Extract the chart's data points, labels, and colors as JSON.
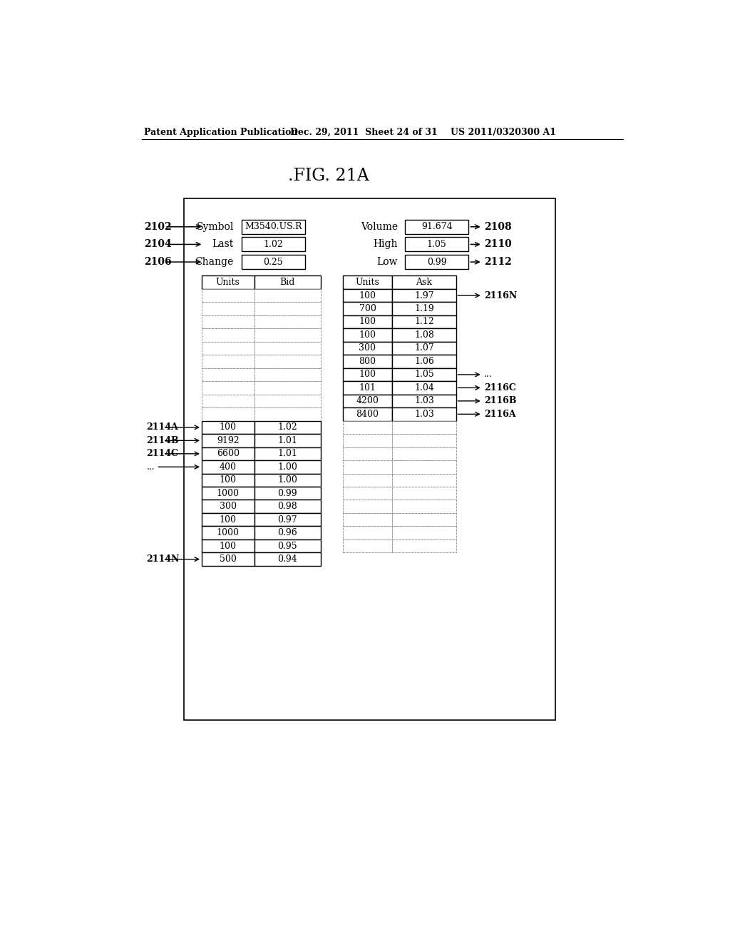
{
  "title": ".FIG. 21A",
  "header_left": "Patent Application Publication",
  "header_mid": "Dec. 29, 2011  Sheet 24 of 31",
  "header_right": "US 2011/0320300 A1",
  "symbol_label": "Symbol",
  "symbol_value": "M3540.US.R",
  "last_label": "Last",
  "last_value": "1.02",
  "change_label": "Change",
  "change_value": "0.25",
  "volume_label": "Volume",
  "volume_value": "91.674",
  "high_label": "High",
  "high_value": "1.05",
  "low_label": "Low",
  "low_value": "0.99",
  "bid_rows_solid": [
    [
      "100",
      "1.02"
    ],
    [
      "9192",
      "1.01"
    ],
    [
      "6600",
      "1.01"
    ],
    [
      "400",
      "1.00"
    ],
    [
      "100",
      "1.00"
    ],
    [
      "1000",
      "0.99"
    ],
    [
      "300",
      "0.98"
    ],
    [
      "100",
      "0.97"
    ],
    [
      "1000",
      "0.96"
    ],
    [
      "100",
      "0.95"
    ],
    [
      "500",
      "0.94"
    ]
  ],
  "bid_rows_dashed_count": 10,
  "ask_rows_solid": [
    [
      "100",
      "1.97"
    ],
    [
      "700",
      "1.19"
    ],
    [
      "100",
      "1.12"
    ],
    [
      "100",
      "1.08"
    ],
    [
      "300",
      "1.07"
    ],
    [
      "800",
      "1.06"
    ],
    [
      "100",
      "1.05"
    ],
    [
      "101",
      "1.04"
    ],
    [
      "4200",
      "1.03"
    ],
    [
      "8400",
      "1.03"
    ]
  ],
  "ask_rows_dashed_count": 10,
  "bid_row_labels": [
    {
      "text": "2114A",
      "row_idx": 0
    },
    {
      "text": "2114B",
      "row_idx": 1
    },
    {
      "text": "2114C",
      "row_idx": 2
    },
    {
      "text": "...",
      "row_idx": 3
    },
    {
      "text": "2114N",
      "row_idx": 10
    }
  ],
  "ask_row_labels": [
    {
      "text": "2116N",
      "row_idx": 0
    },
    {
      "text": "...",
      "row_idx": 6
    },
    {
      "text": "2116C",
      "row_idx": 7
    },
    {
      "text": "2116B",
      "row_idx": 8
    },
    {
      "text": "2116A",
      "row_idx": 9
    }
  ]
}
